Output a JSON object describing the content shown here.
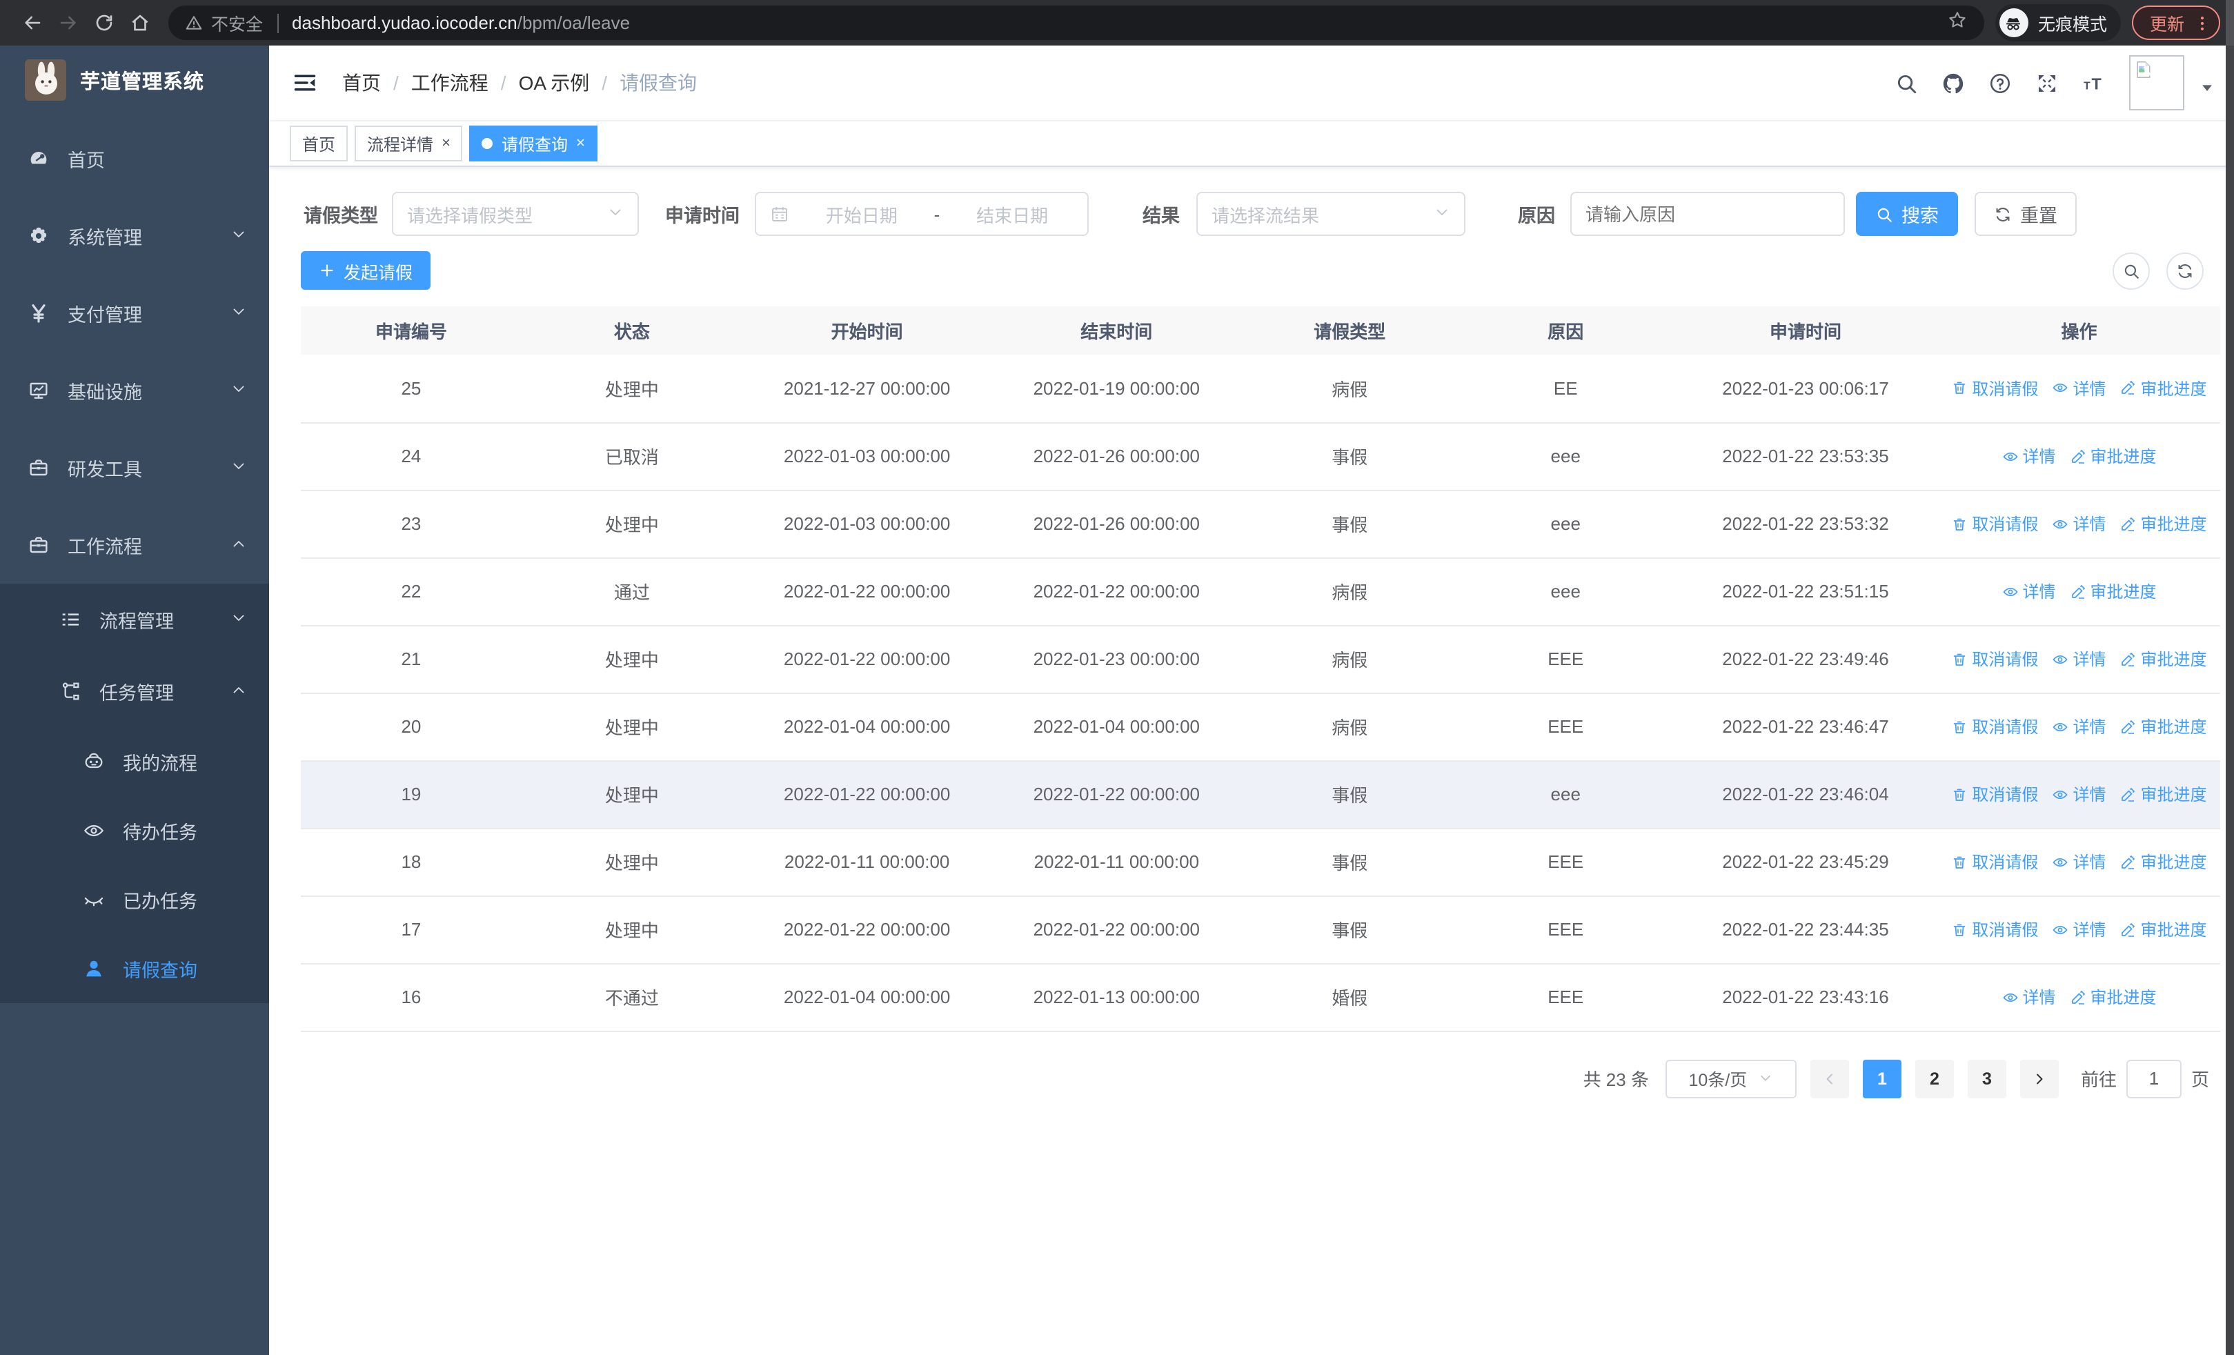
{
  "colors": {
    "accent": "#409eff",
    "sidebar_bg": "#3a4a5e",
    "submenu_bg": "#2d3c4e",
    "update_accent": "#f28b82",
    "header_bg": "#f8f8f9"
  },
  "browser": {
    "security_label": "不安全",
    "url_host": "dashboard.yudao.iocoder.cn",
    "url_path": "/bpm/oa/leave",
    "incognito_label": "无痕模式",
    "update_label": "更新"
  },
  "sidebar": {
    "title": "芋道管理系统",
    "items": [
      {
        "key": "home",
        "label": "首页",
        "icon": "gauge",
        "level": 1,
        "sub": false
      },
      {
        "key": "system",
        "label": "系统管理",
        "icon": "gear",
        "level": 1,
        "arrow": "down",
        "sub": false
      },
      {
        "key": "payment",
        "label": "支付管理",
        "icon": "yen",
        "level": 1,
        "arrow": "down",
        "sub": false
      },
      {
        "key": "infra",
        "label": "基础设施",
        "icon": "monitor",
        "level": 1,
        "arrow": "down",
        "sub": false
      },
      {
        "key": "devtools",
        "label": "研发工具",
        "icon": "briefcase",
        "level": 1,
        "arrow": "down",
        "sub": false
      },
      {
        "key": "workflow",
        "label": "工作流程",
        "icon": "briefcase",
        "level": 1,
        "arrow": "up",
        "sub": false
      },
      {
        "key": "process-mgmt",
        "label": "流程管理",
        "icon": "flow-list",
        "level": 2,
        "arrow": "down",
        "sub": true
      },
      {
        "key": "task-mgmt",
        "label": "任务管理",
        "icon": "task",
        "level": 2,
        "arrow": "up",
        "sub": true
      },
      {
        "key": "my-process",
        "label": "我的流程",
        "icon": "robot",
        "level": 3,
        "sub": true
      },
      {
        "key": "todo-tasks",
        "label": "待办任务",
        "icon": "eye",
        "level": 3,
        "sub": true
      },
      {
        "key": "done-tasks",
        "label": "已办任务",
        "icon": "eye-closed",
        "level": 3,
        "sub": true
      },
      {
        "key": "leave-query",
        "label": "请假查询",
        "icon": "user",
        "level": 3,
        "sub": true,
        "active": true
      }
    ]
  },
  "header": {
    "breadcrumbs": [
      "首页",
      "工作流程",
      "OA 示例",
      "请假查询"
    ]
  },
  "tabs": [
    {
      "key": "home",
      "label": "首页",
      "closable": false,
      "active": false
    },
    {
      "key": "process-detail",
      "label": "流程详情",
      "closable": true,
      "active": false
    },
    {
      "key": "leave-query",
      "label": "请假查询",
      "closable": true,
      "active": true
    }
  ],
  "filters": {
    "leave_type_label": "请假类型",
    "leave_type_placeholder": "请选择请假类型",
    "apply_time_label": "申请时间",
    "date_start_placeholder": "开始日期",
    "date_separator": "-",
    "date_end_placeholder": "结束日期",
    "result_label": "结果",
    "result_placeholder": "请选择流结果",
    "reason_label": "原因",
    "reason_placeholder": "请输入原因",
    "search_label": "搜索",
    "reset_label": "重置"
  },
  "toolbar": {
    "create_label": "发起请假"
  },
  "table": {
    "columns": [
      "申请编号",
      "状态",
      "开始时间",
      "结束时间",
      "请假类型",
      "原因",
      "申请时间",
      "操作"
    ],
    "action_labels": {
      "cancel": "取消请假",
      "detail": "详情",
      "progress": "审批进度"
    },
    "rows": [
      {
        "id": "25",
        "status": "处理中",
        "start": "2021-12-27 00:00:00",
        "end": "2022-01-19 00:00:00",
        "type": "病假",
        "reason": "EE",
        "apply": "2022-01-23 00:06:17",
        "actions": [
          "cancel",
          "detail",
          "progress"
        ],
        "highlight": false
      },
      {
        "id": "24",
        "status": "已取消",
        "start": "2022-01-03 00:00:00",
        "end": "2022-01-26 00:00:00",
        "type": "事假",
        "reason": "eee",
        "apply": "2022-01-22 23:53:35",
        "actions": [
          "detail",
          "progress"
        ],
        "highlight": false
      },
      {
        "id": "23",
        "status": "处理中",
        "start": "2022-01-03 00:00:00",
        "end": "2022-01-26 00:00:00",
        "type": "事假",
        "reason": "eee",
        "apply": "2022-01-22 23:53:32",
        "actions": [
          "cancel",
          "detail",
          "progress"
        ],
        "highlight": false
      },
      {
        "id": "22",
        "status": "通过",
        "start": "2022-01-22 00:00:00",
        "end": "2022-01-22 00:00:00",
        "type": "病假",
        "reason": "eee",
        "apply": "2022-01-22 23:51:15",
        "actions": [
          "detail",
          "progress"
        ],
        "highlight": false
      },
      {
        "id": "21",
        "status": "处理中",
        "start": "2022-01-22 00:00:00",
        "end": "2022-01-23 00:00:00",
        "type": "病假",
        "reason": "EEE",
        "apply": "2022-01-22 23:49:46",
        "actions": [
          "cancel",
          "detail",
          "progress"
        ],
        "highlight": false
      },
      {
        "id": "20",
        "status": "处理中",
        "start": "2022-01-04 00:00:00",
        "end": "2022-01-04 00:00:00",
        "type": "病假",
        "reason": "EEE",
        "apply": "2022-01-22 23:46:47",
        "actions": [
          "cancel",
          "detail",
          "progress"
        ],
        "highlight": false
      },
      {
        "id": "19",
        "status": "处理中",
        "start": "2022-01-22 00:00:00",
        "end": "2022-01-22 00:00:00",
        "type": "事假",
        "reason": "eee",
        "apply": "2022-01-22 23:46:04",
        "actions": [
          "cancel",
          "detail",
          "progress"
        ],
        "highlight": true
      },
      {
        "id": "18",
        "status": "处理中",
        "start": "2022-01-11 00:00:00",
        "end": "2022-01-11 00:00:00",
        "type": "事假",
        "reason": "EEE",
        "apply": "2022-01-22 23:45:29",
        "actions": [
          "cancel",
          "detail",
          "progress"
        ],
        "highlight": false
      },
      {
        "id": "17",
        "status": "处理中",
        "start": "2022-01-22 00:00:00",
        "end": "2022-01-22 00:00:00",
        "type": "事假",
        "reason": "EEE",
        "apply": "2022-01-22 23:44:35",
        "actions": [
          "cancel",
          "detail",
          "progress"
        ],
        "highlight": false
      },
      {
        "id": "16",
        "status": "不通过",
        "start": "2022-01-04 00:00:00",
        "end": "2022-01-13 00:00:00",
        "type": "婚假",
        "reason": "EEE",
        "apply": "2022-01-22 23:43:16",
        "actions": [
          "detail",
          "progress"
        ],
        "highlight": false
      }
    ]
  },
  "pagination": {
    "total_label": "共 23 条",
    "page_size": "10条/页",
    "pages": [
      "1",
      "2",
      "3"
    ],
    "active_page": "1",
    "goto_label": "前往",
    "goto_value": "1",
    "goto_suffix": "页"
  }
}
